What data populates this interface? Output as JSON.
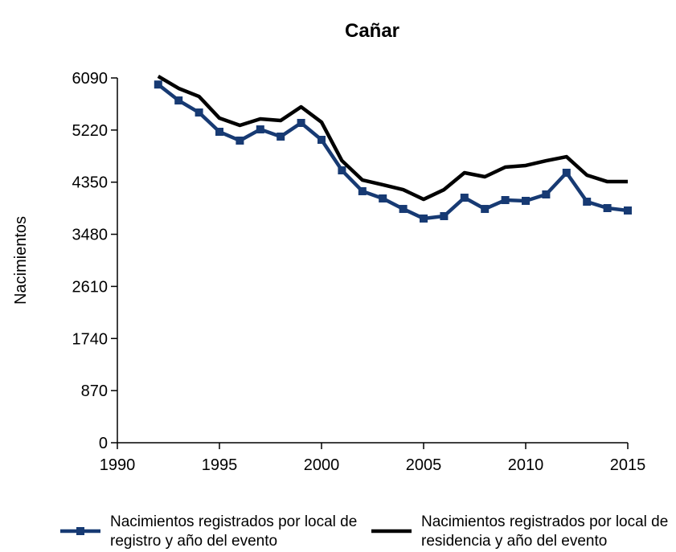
{
  "chart_data": {
    "type": "line",
    "title": "Cañar",
    "y_label": "Nacimientos",
    "x": [
      1992,
      1993,
      1994,
      1995,
      1996,
      1997,
      1998,
      1999,
      2000,
      2001,
      2002,
      2003,
      2004,
      2005,
      2006,
      2007,
      2008,
      2009,
      2010,
      2011,
      2012,
      2013,
      2014,
      2015
    ],
    "series": [
      {
        "name": "Nacimientos registrados por local de registro y año del evento",
        "color": "#173a73",
        "marker": "square",
        "values": [
          5980,
          5714,
          5513,
          5191,
          5044,
          5231,
          5111,
          5339,
          5057,
          4547,
          4199,
          4078,
          3903,
          3743,
          3783,
          4091,
          3903,
          4051,
          4038,
          4145,
          4507,
          4024,
          3917,
          3877
        ]
      },
      {
        "name": "Nacimientos registrados por local de residencia y año del evento",
        "color": "#000000",
        "values": [
          6117,
          5916,
          5781,
          5419,
          5298,
          5406,
          5379,
          5607,
          5352,
          4708,
          4386,
          4306,
          4225,
          4064,
          4225,
          4507,
          4440,
          4601,
          4628,
          4708,
          4775,
          4467,
          4359,
          4359
        ]
      }
    ],
    "xlim": [
      1990,
      2015
    ],
    "xticks": [
      1990,
      1995,
      2000,
      2005,
      2010,
      2015
    ],
    "ylim": [
      0,
      6090
    ],
    "yticks": [
      0,
      870,
      1740,
      2610,
      3480,
      4350,
      5220,
      6090
    ]
  }
}
